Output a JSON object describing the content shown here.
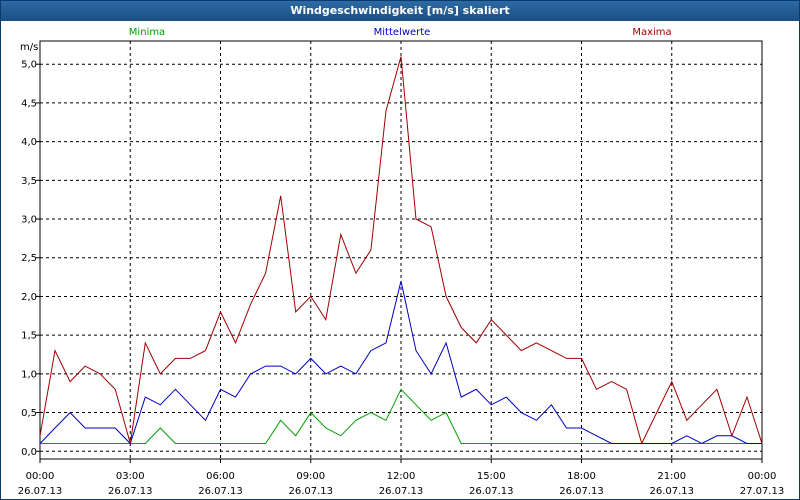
{
  "window": {
    "title": "Windgeschwindigkeit [m/s] skaliert"
  },
  "chart_data": {
    "type": "line",
    "title": "Windgeschwindigkeit [m/s] skaliert",
    "ylabel": "m/s",
    "xlabel": "",
    "ylim": [
      -0.1,
      5.3
    ],
    "xlim": [
      0,
      24
    ],
    "grid": true,
    "legend_position": "top",
    "y_ticks": [
      "0,0",
      "0,5",
      "1,0",
      "1,5",
      "2,0",
      "2,5",
      "3,0",
      "3,5",
      "4,0",
      "4,5",
      "5,0"
    ],
    "x_ticks": [
      {
        "time": "00:00",
        "date": "26.07.13"
      },
      {
        "time": "03:00",
        "date": "26.07.13"
      },
      {
        "time": "06:00",
        "date": "26.07.13"
      },
      {
        "time": "09:00",
        "date": "26.07.13"
      },
      {
        "time": "12:00",
        "date": "26.07.13"
      },
      {
        "time": "15:00",
        "date": "26.07.13"
      },
      {
        "time": "18:00",
        "date": "26.07.13"
      },
      {
        "time": "21:00",
        "date": "26.07.13"
      },
      {
        "time": "00:00",
        "date": "27.07.13"
      }
    ],
    "series": [
      {
        "name": "Minima",
        "color": "#00a000",
        "x": [
          0,
          0.5,
          1,
          1.5,
          2,
          2.5,
          3,
          3.5,
          4,
          4.5,
          5,
          5.5,
          6,
          6.5,
          7,
          7.5,
          8,
          8.5,
          9,
          9.5,
          10,
          10.5,
          11,
          11.5,
          12,
          12.5,
          13,
          13.5,
          14,
          14.5,
          15,
          15.5,
          16,
          16.5,
          17,
          17.5,
          18,
          18.5,
          19,
          19.5,
          20,
          20.5,
          21,
          21.5,
          22,
          22.5,
          23,
          23.5,
          24
        ],
        "values": [
          0.1,
          0.1,
          0.1,
          0.1,
          0.1,
          0.1,
          0.1,
          0.1,
          0.3,
          0.1,
          0.1,
          0.1,
          0.1,
          0.1,
          0.1,
          0.1,
          0.4,
          0.2,
          0.5,
          0.3,
          0.2,
          0.4,
          0.5,
          0.4,
          0.8,
          0.6,
          0.4,
          0.5,
          0.1,
          0.1,
          0.1,
          0.1,
          0.1,
          0.1,
          0.1,
          0.1,
          0.1,
          0.1,
          0.1,
          0.1,
          0.1,
          0.1,
          0.1,
          0.1,
          0.1,
          0.1,
          0.1,
          0.1,
          0.1
        ]
      },
      {
        "name": "Mittelwerte",
        "color": "#0000c0",
        "x": [
          0,
          0.5,
          1,
          1.5,
          2,
          2.5,
          3,
          3.5,
          4,
          4.5,
          5,
          5.5,
          6,
          6.5,
          7,
          7.5,
          8,
          8.5,
          9,
          9.5,
          10,
          10.5,
          11,
          11.5,
          12,
          12.5,
          13,
          13.5,
          14,
          14.5,
          15,
          15.5,
          16,
          16.5,
          17,
          17.5,
          18,
          18.5,
          19,
          19.5,
          20,
          20.5,
          21,
          21.5,
          22,
          22.5,
          23,
          23.5,
          24
        ],
        "values": [
          0.1,
          0.3,
          0.5,
          0.3,
          0.3,
          0.3,
          0.1,
          0.7,
          0.6,
          0.8,
          0.6,
          0.4,
          0.8,
          0.7,
          1.0,
          1.1,
          1.1,
          1.0,
          1.2,
          1.0,
          1.1,
          1.0,
          1.3,
          1.4,
          2.2,
          1.3,
          1.0,
          1.4,
          0.7,
          0.8,
          0.6,
          0.7,
          0.5,
          0.4,
          0.6,
          0.3,
          0.3,
          0.2,
          0.1,
          0.1,
          0.1,
          0.1,
          0.1,
          0.2,
          0.1,
          0.2,
          0.2,
          0.1,
          0.1
        ]
      },
      {
        "name": "Maxima",
        "color": "#a00000",
        "x": [
          0,
          0.5,
          1,
          1.5,
          2,
          2.5,
          3,
          3.5,
          4,
          4.5,
          5,
          5.5,
          6,
          6.5,
          7,
          7.5,
          8,
          8.5,
          9,
          9.5,
          10,
          10.5,
          11,
          11.5,
          12,
          12.5,
          13,
          13.5,
          14,
          14.5,
          15,
          15.5,
          16,
          16.5,
          17,
          17.5,
          18,
          18.5,
          19,
          19.5,
          20,
          20.5,
          21,
          21.5,
          22,
          22.5,
          23,
          23.5,
          24
        ],
        "values": [
          0.2,
          1.3,
          0.9,
          1.1,
          1.0,
          0.8,
          0.1,
          1.4,
          1.0,
          1.2,
          1.2,
          1.3,
          1.8,
          1.4,
          1.9,
          2.3,
          3.3,
          1.8,
          2.0,
          1.7,
          2.8,
          2.3,
          2.6,
          4.4,
          5.1,
          3.0,
          2.9,
          2.0,
          1.6,
          1.4,
          1.7,
          1.5,
          1.3,
          1.4,
          1.3,
          1.2,
          1.2,
          0.8,
          0.9,
          0.8,
          0.1,
          0.5,
          0.9,
          0.4,
          0.6,
          0.8,
          0.2,
          0.7,
          0.1
        ]
      }
    ]
  }
}
